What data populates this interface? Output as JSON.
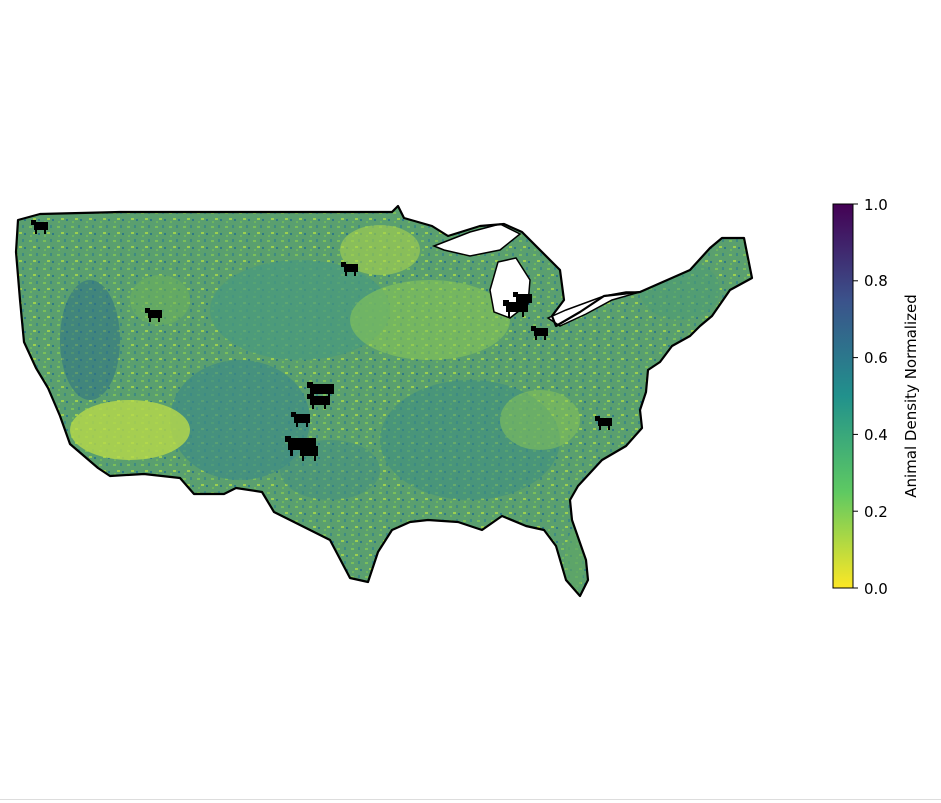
{
  "map": {
    "region": "contiguous United States",
    "style": "choropleth raster with animal silhouette markers",
    "background": "#ffffff",
    "outline_color": "#000000",
    "lake_fill": "#ffffff",
    "marker_icon": "cow-icon",
    "marker_color": "#000000"
  },
  "colorbar": {
    "label": "Animal Density Normalized",
    "colormap": "viridis_r",
    "vmin": 0.0,
    "vmax": 1.0,
    "ticks": [
      "0.0",
      "0.2",
      "0.4",
      "0.6",
      "0.8",
      "1.0"
    ],
    "stops": [
      "#fde725",
      "#5ec962",
      "#21918c",
      "#3b528b",
      "#440154"
    ]
  }
}
